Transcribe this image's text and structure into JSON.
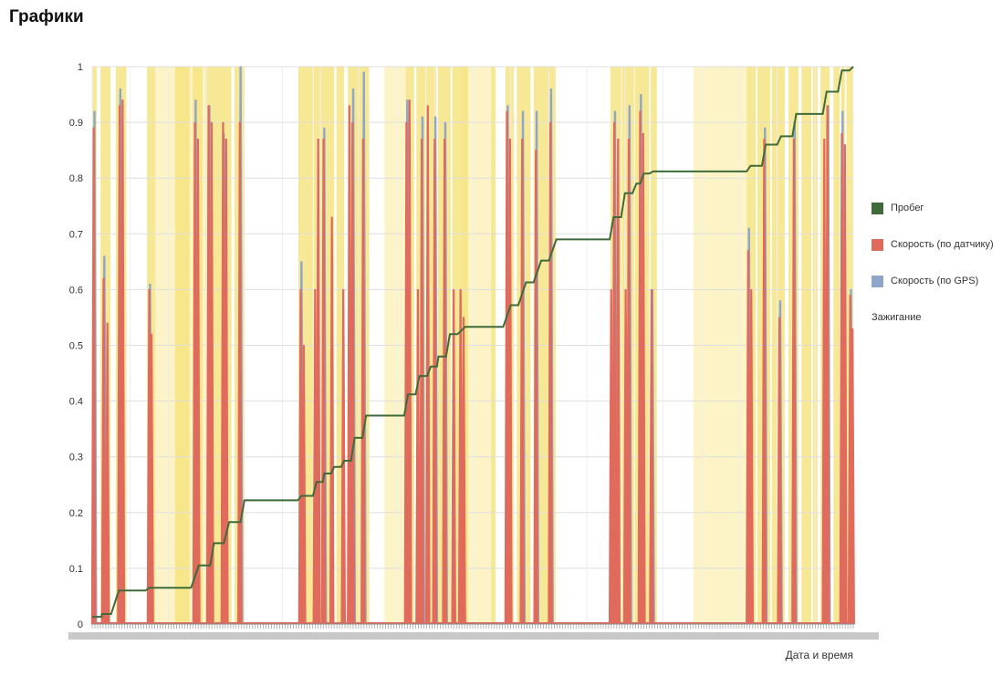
{
  "page": {
    "title": "Графики"
  },
  "chart_data": {
    "type": "line",
    "xlabel": "Дата и время",
    "ylabel": "",
    "ylim": [
      0,
      1
    ],
    "yticks": [
      "0",
      "0.1",
      "0.2",
      "0.3",
      "0.4",
      "0.5",
      "0.6",
      "0.7",
      "0.8",
      "0.9",
      "1"
    ],
    "grid": true,
    "legend_position": "right",
    "x_range": [
      0,
      100
    ],
    "colors": {
      "mileage": "#3f6b3a",
      "speed_sensor": "#e06b5c",
      "speed_gps": "#8fa5c9",
      "ignition": "#f5e27a",
      "ignition_light": "#fcf4c6"
    },
    "series": [
      {
        "name": "Пробег",
        "kind": "step",
        "points": [
          [
            0,
            0.013
          ],
          [
            1.2,
            0.013
          ],
          [
            1.3,
            0.018
          ],
          [
            2.5,
            0.018
          ],
          [
            3.5,
            0.06
          ],
          [
            7,
            0.06
          ],
          [
            7.5,
            0.065
          ],
          [
            13,
            0.065
          ],
          [
            14,
            0.105
          ],
          [
            15.5,
            0.105
          ],
          [
            16,
            0.145
          ],
          [
            17.3,
            0.145
          ],
          [
            18,
            0.183
          ],
          [
            19.5,
            0.183
          ],
          [
            20,
            0.222
          ],
          [
            27,
            0.222
          ],
          [
            27.5,
            0.23
          ],
          [
            29,
            0.23
          ],
          [
            29.5,
            0.255
          ],
          [
            30.3,
            0.255
          ],
          [
            30.5,
            0.27
          ],
          [
            31.4,
            0.27
          ],
          [
            31.8,
            0.282
          ],
          [
            32.7,
            0.282
          ],
          [
            33.1,
            0.293
          ],
          [
            34,
            0.293
          ],
          [
            34.5,
            0.334
          ],
          [
            35.5,
            0.334
          ],
          [
            36,
            0.374
          ],
          [
            41,
            0.374
          ],
          [
            41.5,
            0.412
          ],
          [
            42.5,
            0.412
          ],
          [
            43,
            0.445
          ],
          [
            44,
            0.445
          ],
          [
            44.5,
            0.462
          ],
          [
            45.3,
            0.462
          ],
          [
            45.5,
            0.48
          ],
          [
            46.5,
            0.48
          ],
          [
            47,
            0.52
          ],
          [
            48,
            0.52
          ],
          [
            49,
            0.533
          ],
          [
            54,
            0.533
          ],
          [
            55,
            0.572
          ],
          [
            56,
            0.572
          ],
          [
            57,
            0.613
          ],
          [
            58,
            0.613
          ],
          [
            59,
            0.652
          ],
          [
            60,
            0.652
          ],
          [
            61,
            0.69
          ],
          [
            68,
            0.69
          ],
          [
            68.5,
            0.73
          ],
          [
            69.5,
            0.73
          ],
          [
            70,
            0.773
          ],
          [
            71,
            0.773
          ],
          [
            71.5,
            0.79
          ],
          [
            72,
            0.79
          ],
          [
            72.5,
            0.808
          ],
          [
            73.2,
            0.808
          ],
          [
            73.7,
            0.812
          ],
          [
            86,
            0.812
          ],
          [
            86.5,
            0.822
          ],
          [
            88,
            0.822
          ],
          [
            88.5,
            0.86
          ],
          [
            90,
            0.86
          ],
          [
            90.5,
            0.875
          ],
          [
            92,
            0.875
          ],
          [
            92.5,
            0.915
          ],
          [
            96,
            0.915
          ],
          [
            96.5,
            0.955
          ],
          [
            98,
            0.955
          ],
          [
            98.5,
            0.993
          ],
          [
            99.5,
            0.993
          ],
          [
            100,
            1
          ]
        ]
      },
      {
        "name": "Скорость (по датчику)",
        "kind": "spikes",
        "points": [
          [
            0.2,
            0.89
          ],
          [
            1.5,
            0.62
          ],
          [
            2,
            0.54
          ],
          [
            3.6,
            0.93
          ],
          [
            4,
            0.94
          ],
          [
            7.5,
            0.6
          ],
          [
            7.8,
            0.52
          ],
          [
            13.5,
            0.9
          ],
          [
            13.9,
            0.87
          ],
          [
            15.3,
            0.93
          ],
          [
            15.7,
            0.9
          ],
          [
            17.2,
            0.9
          ],
          [
            17.6,
            0.87
          ],
          [
            19.4,
            0.9
          ],
          [
            27.4,
            0.6
          ],
          [
            27.8,
            0.5
          ],
          [
            29.3,
            0.6
          ],
          [
            29.7,
            0.87
          ],
          [
            30.4,
            0.87
          ],
          [
            31.5,
            0.73
          ],
          [
            33,
            0.6
          ],
          [
            33.8,
            0.93
          ],
          [
            34.2,
            0.9
          ],
          [
            35.6,
            0.87
          ],
          [
            41.3,
            0.9
          ],
          [
            41.7,
            0.94
          ],
          [
            42.8,
            0.6
          ],
          [
            43.3,
            0.87
          ],
          [
            44.1,
            0.93
          ],
          [
            45,
            0.87
          ],
          [
            46.3,
            0.87
          ],
          [
            47.5,
            0.6
          ],
          [
            48.4,
            0.6
          ],
          [
            48.8,
            0.55
          ],
          [
            54.5,
            0.92
          ],
          [
            54.9,
            0.87
          ],
          [
            56.5,
            0.87
          ],
          [
            58.3,
            0.85
          ],
          [
            60.2,
            0.9
          ],
          [
            68.2,
            0.6
          ],
          [
            68.6,
            0.9
          ],
          [
            69.1,
            0.87
          ],
          [
            70.1,
            0.6
          ],
          [
            70.5,
            0.87
          ],
          [
            72,
            0.92
          ],
          [
            72.4,
            0.88
          ],
          [
            73.5,
            0.6
          ],
          [
            86.2,
            0.67
          ],
          [
            86.6,
            0.6
          ],
          [
            88.3,
            0.87
          ],
          [
            90.3,
            0.55
          ],
          [
            92.2,
            0.87
          ],
          [
            96.2,
            0.87
          ],
          [
            96.6,
            0.93
          ],
          [
            98.5,
            0.88
          ],
          [
            98.9,
            0.86
          ],
          [
            99.6,
            0.59
          ],
          [
            99.9,
            0.53
          ]
        ]
      },
      {
        "name": "Скорость (по GPS)",
        "kind": "spikes",
        "points": [
          [
            0.3,
            0.92
          ],
          [
            1.6,
            0.66
          ],
          [
            3.7,
            0.96
          ],
          [
            7.6,
            0.61
          ],
          [
            13.6,
            0.94
          ],
          [
            15.4,
            0.93
          ],
          [
            17.3,
            0.88
          ],
          [
            19.5,
            1.0
          ],
          [
            27.5,
            0.65
          ],
          [
            30.5,
            0.89
          ],
          [
            34.3,
            0.96
          ],
          [
            35.7,
            0.99
          ],
          [
            41.4,
            0.94
          ],
          [
            43.4,
            0.91
          ],
          [
            45.1,
            0.91
          ],
          [
            46.4,
            0.9
          ],
          [
            54.6,
            0.93
          ],
          [
            56.6,
            0.92
          ],
          [
            58.4,
            0.92
          ],
          [
            60.3,
            0.96
          ],
          [
            68.7,
            0.92
          ],
          [
            70.6,
            0.93
          ],
          [
            72.1,
            0.95
          ],
          [
            73.6,
            0.6
          ],
          [
            86.3,
            0.71
          ],
          [
            88.4,
            0.89
          ],
          [
            90.4,
            0.58
          ],
          [
            92.3,
            0.9
          ],
          [
            96.7,
            0.93
          ],
          [
            98.6,
            0.92
          ],
          [
            99.7,
            0.6
          ]
        ]
      },
      {
        "name": "Зажигание",
        "kind": "bands",
        "bands": [
          [
            0,
            0.6
          ],
          [
            1.1,
            2.4
          ],
          [
            3.1,
            4.5
          ],
          [
            7.2,
            8.3
          ],
          [
            10.9,
            12.8
          ],
          [
            13.2,
            14.5
          ],
          [
            14.9,
            18.3
          ],
          [
            18.7,
            20
          ],
          [
            27.1,
            29
          ],
          [
            29.1,
            31.8
          ],
          [
            32.1,
            33.1
          ],
          [
            33.6,
            36.4
          ],
          [
            41.2,
            42.3
          ],
          [
            42.6,
            43.8
          ],
          [
            43.9,
            45.2
          ],
          [
            45.4,
            47.1
          ],
          [
            47.3,
            49.4
          ],
          [
            52.4,
            53
          ],
          [
            54.3,
            55.4
          ],
          [
            55.8,
            57.6
          ],
          [
            58,
            60.9
          ],
          [
            68.1,
            69.5
          ],
          [
            69.6,
            71.2
          ],
          [
            71.3,
            73.2
          ],
          [
            73.4,
            74.2
          ],
          [
            86,
            87.2
          ],
          [
            87.4,
            89.1
          ],
          [
            89.3,
            91
          ],
          [
            91.5,
            92.8
          ],
          [
            93.2,
            94.5
          ],
          [
            94.7,
            95.3
          ],
          [
            95.7,
            96.9
          ],
          [
            97.4,
            98.2
          ],
          [
            98.4,
            98.9
          ],
          [
            99.1,
            100
          ]
        ],
        "light_bands": [
          [
            8.3,
            14.9
          ],
          [
            38.4,
            41.2
          ],
          [
            48.4,
            52.4
          ],
          [
            79,
            86
          ]
        ]
      }
    ]
  }
}
